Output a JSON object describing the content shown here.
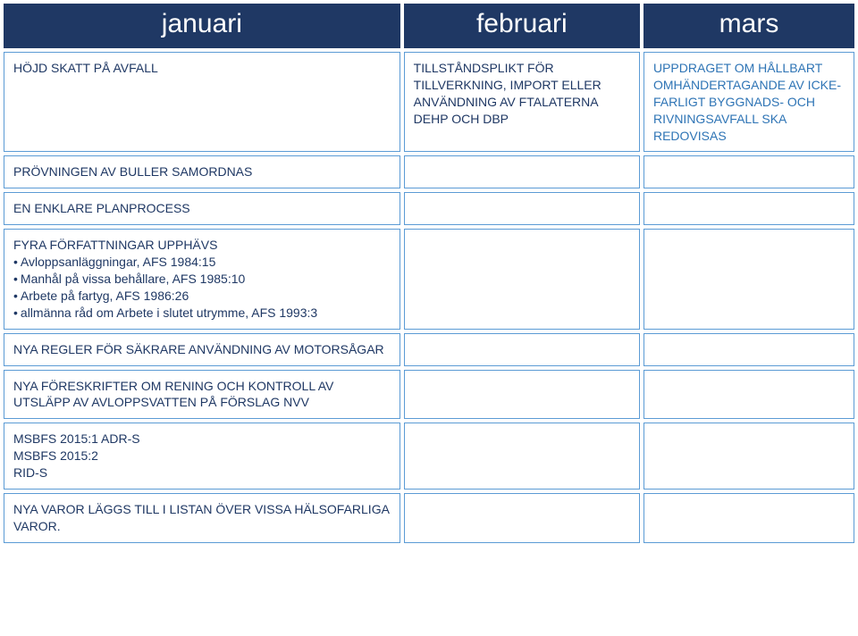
{
  "colors": {
    "header_bg": "#1f3864",
    "header_text": "#ffffff",
    "cell_border": "#5b9bd5",
    "jan_text": "#1f3864",
    "feb_text": "#1f3864",
    "mar_text": "#2e74b5"
  },
  "header": {
    "jan": "januari",
    "feb": "februari",
    "mar": "mars"
  },
  "rows": [
    {
      "jan": "HÖJD SKATT PÅ AVFALL",
      "feb": "TILLSTÅNDSPLIKT FÖR TILLVERKNING, IMPORT ELLER ANVÄNDNING AV FTALATERNA DEHP OCH DBP",
      "mar": "UPPDRAGET OM HÅLLBART OMHÄNDERTAGANDE AV ICKE-FARLIGT BYGGNADS- OCH RIVNINGSAVFALL SKA REDOVISAS"
    },
    {
      "jan": "PRÖVNINGEN AV BULLER SAMORDNAS",
      "feb": "",
      "mar": ""
    },
    {
      "jan": "EN ENKLARE PLANPROCESS",
      "feb": "",
      "mar": ""
    },
    {
      "jan_title": "FYRA FÖRFATTNINGAR UPPHÄVS",
      "jan_bullets": [
        "Avloppsanläggningar, AFS 1984:15",
        "Manhål på vissa behållare, AFS 1985:10",
        "Arbete på fartyg, AFS 1986:26",
        "allmänna råd om Arbete i slutet utrymme, AFS 1993:3"
      ],
      "feb": "",
      "mar": ""
    },
    {
      "jan": "NYA REGLER FÖR SÄKRARE ANVÄNDNING AV MOTORSÅGAR",
      "feb": "",
      "mar": ""
    },
    {
      "jan": "NYA FÖRESKRIFTER OM RENING OCH KONTROLL AV UTSLÄPP AV AVLOPPSVATTEN PÅ FÖRSLAG NVV",
      "feb": "",
      "mar": ""
    },
    {
      "jan": "MSBFS 2015:1 ADR-S\nMSBFS 2015:2\nRID-S",
      "feb": "",
      "mar": ""
    },
    {
      "jan": "NYA VAROR LÄGGS TILL I LISTAN ÖVER VISSA HÄLSOFARLIGA VAROR.",
      "feb": "",
      "mar": ""
    }
  ]
}
